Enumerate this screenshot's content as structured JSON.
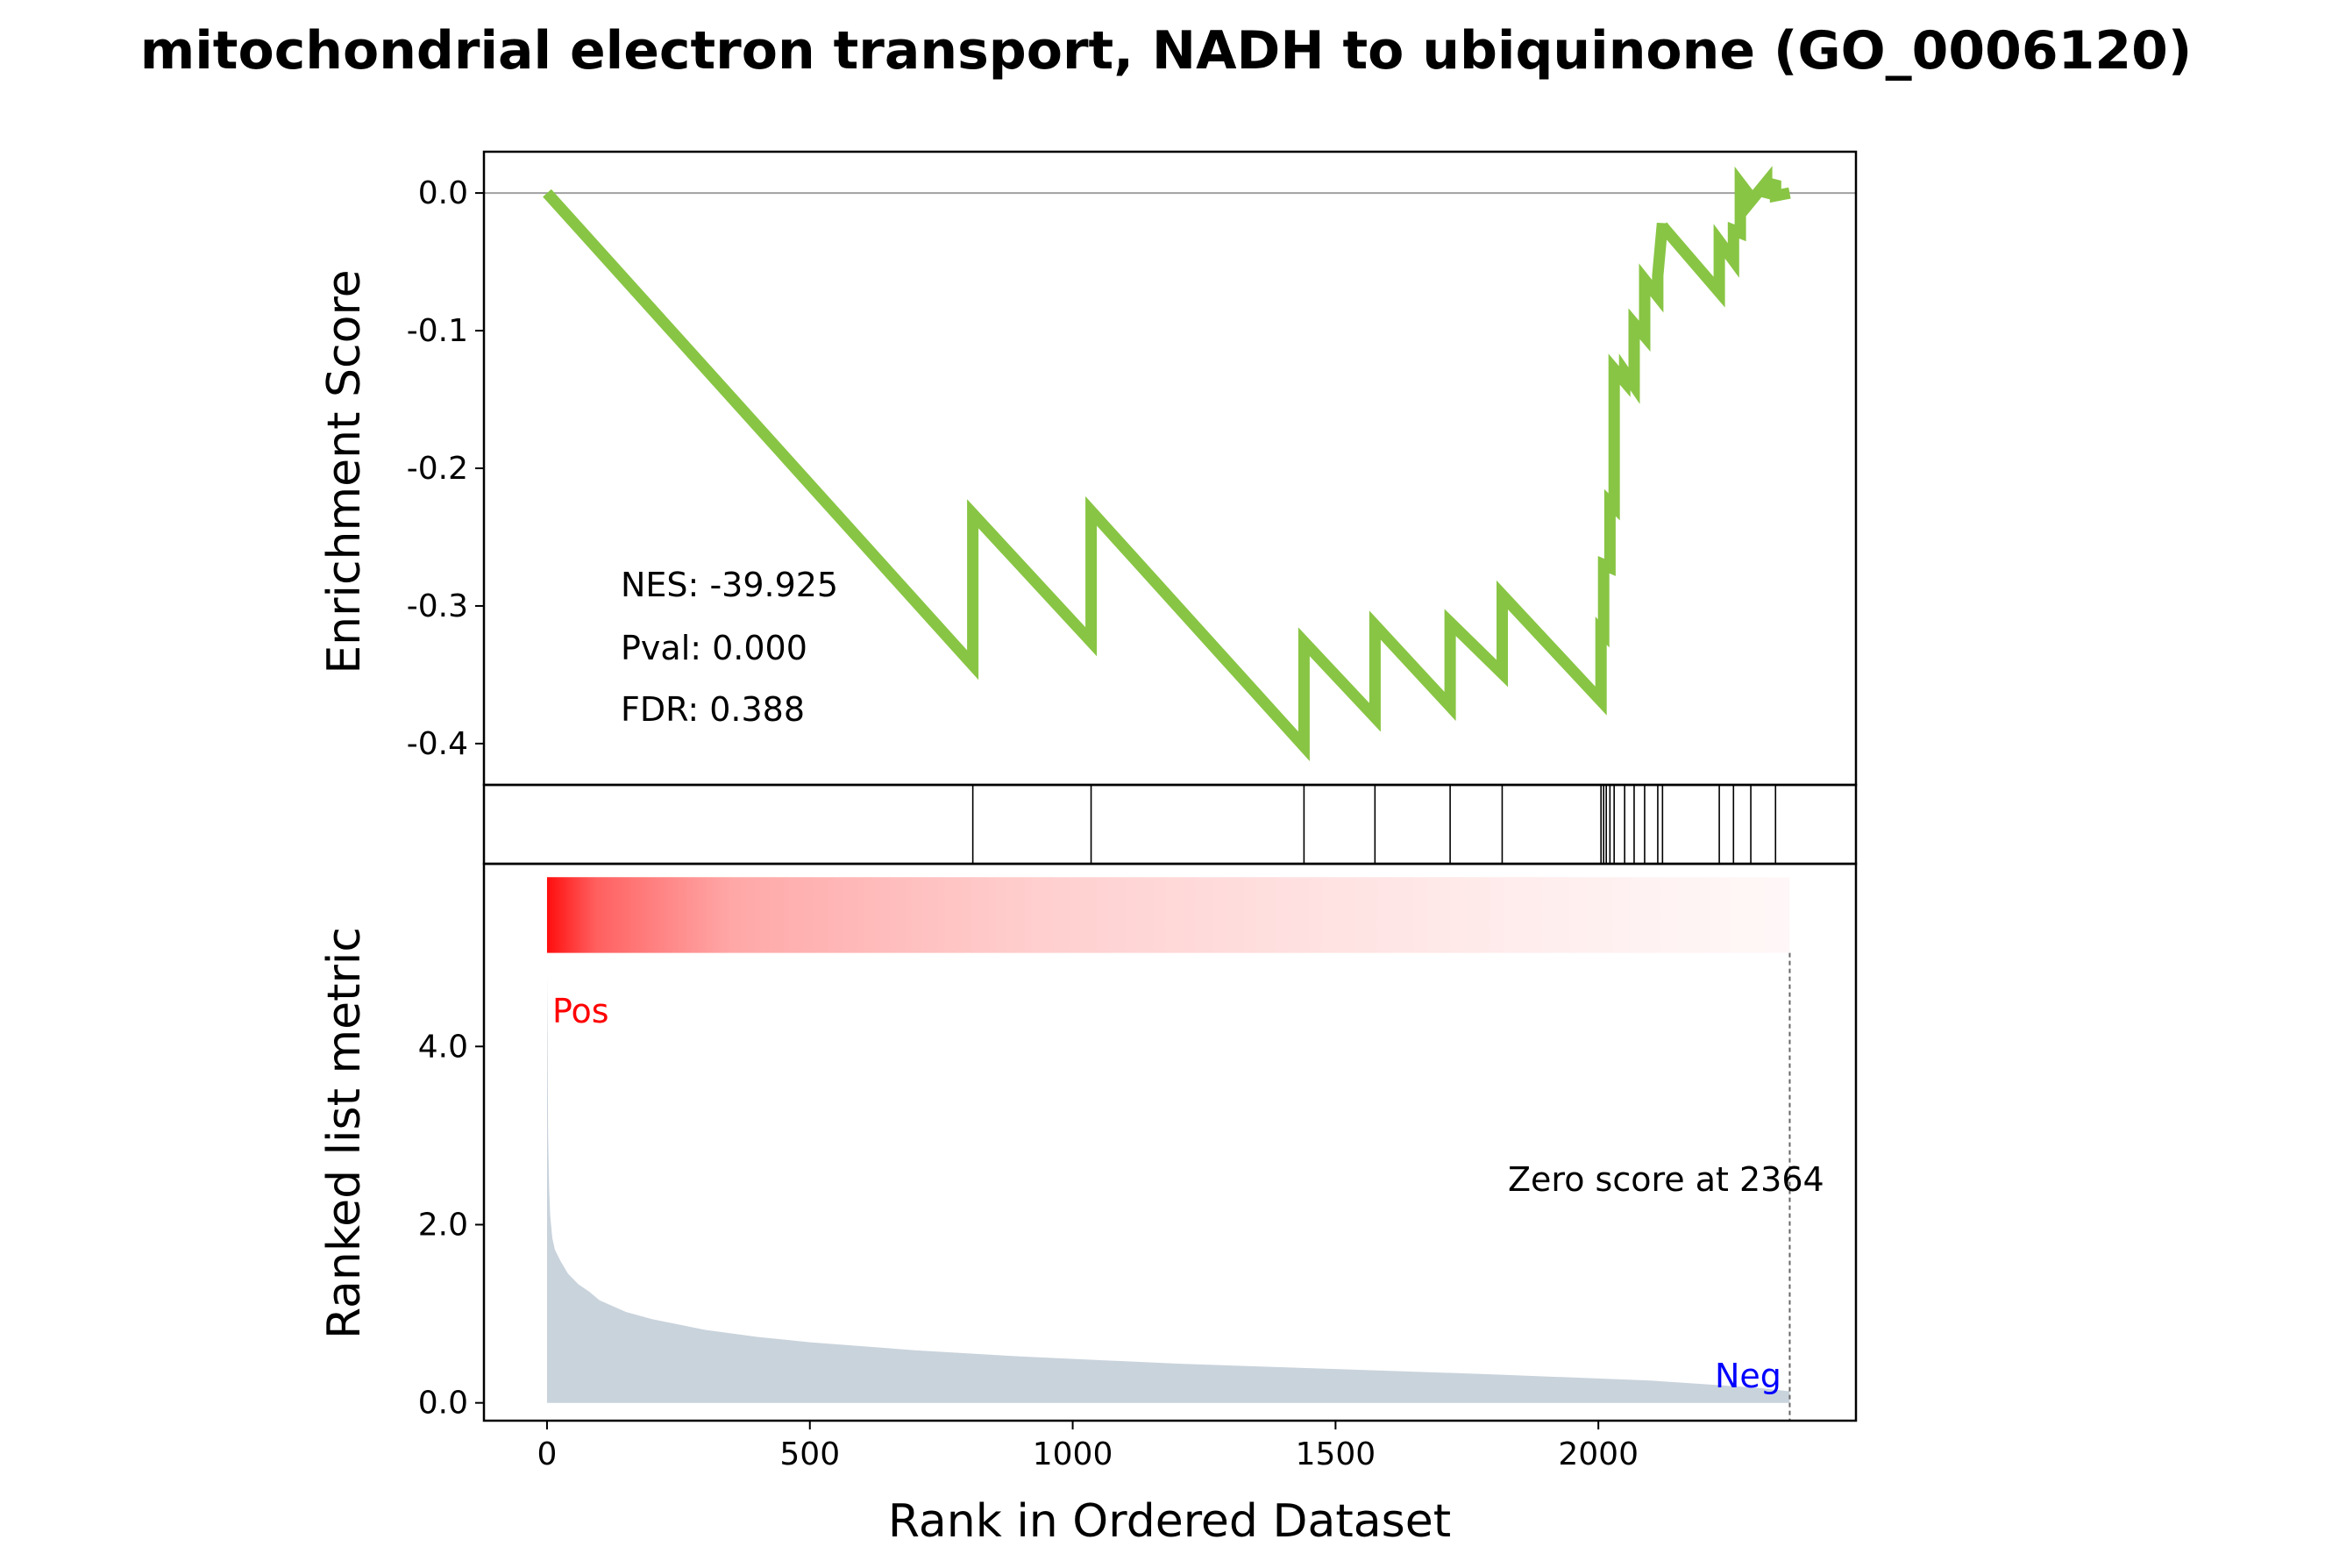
{
  "chart_data": {
    "type": "line",
    "title": "mitochondrial electron transport, NADH to ubiquinone (GO_0006120)",
    "colors": {
      "es_line": "#88c544",
      "ranked_fill": "#c9d3dc",
      "heat_red": "#ff0000",
      "pos": "#ff0000",
      "neg": "#0000ff"
    },
    "xlabel": "Rank in Ordered Dataset",
    "x_ticks": [
      "0",
      "500",
      "1000",
      "1500",
      "2000"
    ],
    "xlim": [
      -120,
      2490
    ],
    "es_panel": {
      "ylabel": "Enrichment Score",
      "ylim": [
        -0.43,
        0.03
      ],
      "y_ticks": [
        "0.0",
        "-0.1",
        "-0.2",
        "-0.3",
        "-0.4"
      ],
      "zero_line": true,
      "series": [
        {
          "x": [
            0,
            810,
            810,
            1035,
            1035,
            1440,
            1440,
            1575,
            1575,
            1718,
            1718,
            1817,
            1817,
            2005,
            2005,
            2010,
            2010,
            2022,
            2022,
            2030,
            2030,
            2050,
            2050,
            2068,
            2068,
            2088,
            2088,
            2113,
            2113,
            2122,
            2122,
            2230,
            2230,
            2257,
            2257,
            2270,
            2270,
            2290,
            2290,
            2320,
            2320,
            2337,
            2337,
            2364
          ],
          "y": [
            0.0,
            -0.343,
            -0.233,
            -0.326,
            -0.231,
            -0.402,
            -0.326,
            -0.381,
            -0.314,
            -0.373,
            -0.312,
            -0.349,
            -0.292,
            -0.369,
            -0.318,
            -0.32,
            -0.27,
            -0.272,
            -0.225,
            -0.228,
            -0.128,
            -0.137,
            -0.13,
            -0.14,
            -0.095,
            -0.104,
            -0.063,
            -0.075,
            -0.06,
            -0.022,
            -0.024,
            -0.072,
            -0.035,
            -0.049,
            -0.027,
            -0.029,
            0.007,
            -0.003,
            -0.006,
            0.008,
            -0.003,
            0.009,
            -0.002,
            0.0
          ]
        }
      ],
      "annotations": [
        "NES: -39.925",
        "Pval: 0.000",
        "FDR: 0.388"
      ]
    },
    "hits_panel": {
      "hit_ranks": [
        810,
        1035,
        1440,
        1575,
        1718,
        1817,
        2005,
        2010,
        2015,
        2022,
        2030,
        2050,
        2068,
        2088,
        2113,
        2122,
        2230,
        2257,
        2290,
        2337
      ]
    },
    "ranked_panel": {
      "ylabel": "Ranked list metric",
      "ylim": [
        -0.2,
        6.05
      ],
      "y_ticks": [
        "0.0",
        "2.0",
        "4.0"
      ],
      "y_tick_values": [
        0,
        2,
        4
      ],
      "heatmap_band": [
        5.05,
        5.9
      ],
      "metric_curve": {
        "x": [
          0,
          1,
          2,
          4,
          6,
          10,
          15,
          25,
          40,
          60,
          80,
          100,
          150,
          200,
          300,
          400,
          500,
          700,
          900,
          1200,
          1500,
          1800,
          2100,
          2300,
          2364
        ],
        "y": [
          4.8,
          4.1,
          3.0,
          2.4,
          2.1,
          1.85,
          1.72,
          1.6,
          1.45,
          1.33,
          1.25,
          1.15,
          1.02,
          0.94,
          0.82,
          0.74,
          0.68,
          0.59,
          0.52,
          0.44,
          0.38,
          0.32,
          0.25,
          0.17,
          0.13
        ]
      },
      "pos_label": "Pos",
      "neg_label": "Neg",
      "zero_score_label": "Zero score at 2364",
      "zero_score_rank": 2364
    }
  }
}
